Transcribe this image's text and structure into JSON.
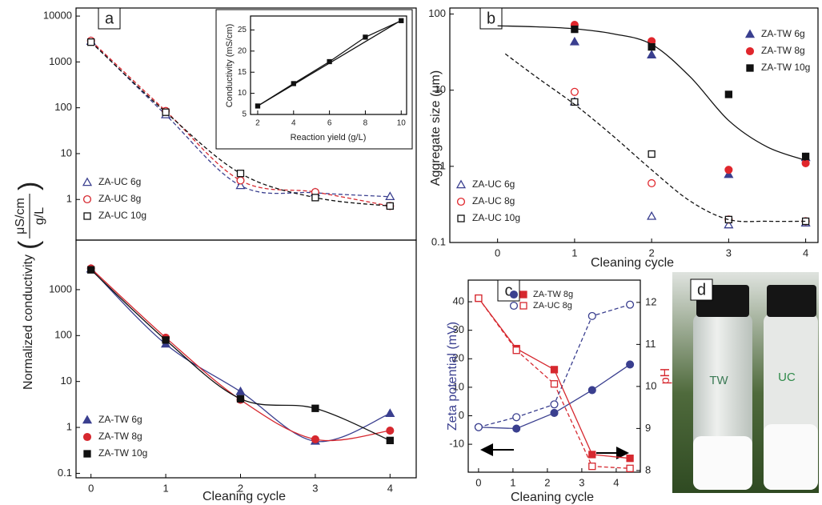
{
  "chart_data": [
    {
      "type": "line",
      "label": "a",
      "x": [
        0,
        1,
        2,
        3,
        4
      ],
      "xlim": [
        -0.2,
        4.35
      ],
      "ylim": [
        0.13,
        15000
      ],
      "log_y": true,
      "yticks": [
        1,
        10,
        100,
        1000,
        10000
      ],
      "ylabel": {
        "text": "Normalized conductivity",
        "numerator": "μS/cm",
        "denominator": "g/L"
      },
      "legend": "lower left",
      "series": [
        {
          "name": "ZA-UC 6g",
          "color": "#3a3f8f",
          "marker": "triangle",
          "filled": false,
          "dash": true,
          "smooth": true,
          "values": [
            2800,
            70,
            2,
            1.4,
            1.15
          ]
        },
        {
          "name": "ZA-UC 8g",
          "color": "#d6282f",
          "marker": "circle",
          "filled": false,
          "dash": true,
          "smooth": true,
          "values": [
            2900,
            85,
            2.6,
            1.45,
            0.72
          ]
        },
        {
          "name": "ZA-UC 10g",
          "color": "#111111",
          "marker": "square",
          "filled": false,
          "dash": true,
          "smooth": true,
          "values": [
            2700,
            80,
            3.7,
            1.1,
            0.72
          ]
        }
      ]
    },
    {
      "type": "line",
      "x": [
        0,
        1,
        2,
        3,
        4
      ],
      "xlim": [
        -0.2,
        4.35
      ],
      "ylim": [
        0.08,
        12000
      ],
      "log_y": true,
      "xticks": [
        0,
        1,
        2,
        3,
        4
      ],
      "yticks": [
        0.1,
        1,
        10,
        100,
        1000
      ],
      "xlabel": "Cleaning cycle",
      "legend": "lower left",
      "series": [
        {
          "name": "ZA-TW 6g",
          "color": "#3a3f8f",
          "marker": "triangle",
          "filled": true,
          "dash": false,
          "smooth": true,
          "values": [
            2800,
            65,
            6,
            0.5,
            2
          ]
        },
        {
          "name": "ZA-TW 8g",
          "color": "#d6282f",
          "marker": "circle",
          "filled": true,
          "dash": false,
          "smooth": true,
          "values": [
            2900,
            90,
            4,
            0.55,
            0.85
          ]
        },
        {
          "name": "ZA-TW 10g",
          "color": "#111111",
          "marker": "square",
          "filled": true,
          "dash": false,
          "smooth": true,
          "values": [
            2700,
            80,
            4.2,
            2.6,
            0.52
          ]
        }
      ]
    },
    {
      "type": "line",
      "x": [
        2,
        4,
        6,
        8,
        10
      ],
      "xlim": [
        1.6,
        10.3
      ],
      "ylim": [
        5,
        28.3
      ],
      "xticks": [
        2,
        4,
        6,
        8,
        10
      ],
      "yticks": [
        5,
        10,
        15,
        20,
        25
      ],
      "xlabel": "Reaction yield (g/L)",
      "ylabel": "Conductivity (mS/cm)",
      "series": [
        {
          "color": "#111111",
          "marker": "square",
          "filled": true,
          "dash": false,
          "smooth": false,
          "values": [
            7,
            12.3,
            17.5,
            23.3,
            27.2
          ]
        },
        {
          "color": "#111111",
          "marker": "none",
          "dash": false,
          "smooth": false,
          "x": [
            2,
            10
          ],
          "values": [
            7,
            27.3
          ]
        }
      ]
    },
    {
      "type": "line",
      "label": "b",
      "x": [
        1,
        2,
        3,
        4
      ],
      "xlim": [
        -0.62,
        4.16
      ],
      "ylim": [
        0.1,
        120
      ],
      "log_y": true,
      "xticks": [
        0,
        1,
        2,
        3,
        4
      ],
      "yticks": [
        0.1,
        1,
        10,
        100
      ],
      "xlabel": "Cleaning cycle",
      "ylabel": "Aggregate size (μm)",
      "series": [
        {
          "name": "ZA-TW 6g",
          "legend": "upper right",
          "color": "#3a3f8f",
          "marker": "triangle",
          "filled": true,
          "dash": null,
          "values": [
            43,
            29,
            0.78,
            1.3
          ]
        },
        {
          "name": "ZA-TW 8g",
          "legend": "upper right",
          "color": "#e0262c",
          "marker": "circle",
          "filled": true,
          "dash": null,
          "values": [
            72,
            44,
            0.9,
            1.1
          ]
        },
        {
          "name": "ZA-TW 10g",
          "legend": "upper right",
          "color": "#111111",
          "marker": "square",
          "filled": true,
          "dash": null,
          "values": [
            63,
            37,
            8.8,
            1.35
          ]
        },
        {
          "name": "ZA-UC 6g",
          "legend": "lower left",
          "color": "#3a3f8f",
          "marker": "triangle",
          "filled": false,
          "dash": null,
          "values": [
            7,
            0.22,
            0.17,
            0.18
          ]
        },
        {
          "name": "ZA-UC 8g",
          "legend": "lower left",
          "color": "#e0262c",
          "marker": "circle",
          "filled": false,
          "dash": null,
          "values": [
            9.5,
            0.6,
            0.2,
            0.19
          ]
        },
        {
          "name": "ZA-UC 10g",
          "legend": "lower left",
          "color": "#111111",
          "marker": "square",
          "filled": false,
          "dash": null,
          "values": [
            7,
            1.45,
            0.2,
            0.19
          ]
        },
        {
          "color": "#111111",
          "marker": "none",
          "dash": false,
          "smooth": true,
          "x": [
            0,
            0.5,
            1,
            1.5,
            2,
            2.5,
            3,
            3.5,
            4
          ],
          "values": [
            70,
            68,
            64,
            55,
            40,
            15,
            4,
            1.8,
            1.2
          ]
        },
        {
          "color": "#111111",
          "marker": "none",
          "dash": true,
          "smooth": true,
          "x": [
            0.1,
            0.5,
            1,
            1.5,
            2,
            2.5,
            3,
            3.5,
            4
          ],
          "values": [
            30,
            15,
            6.5,
            2.5,
            0.9,
            0.35,
            0.2,
            0.19,
            0.19
          ]
        }
      ]
    },
    {
      "type": "line",
      "label": "c",
      "x": [
        0,
        1.1,
        2.2,
        3.3,
        4.4
      ],
      "xlim": [
        -0.3,
        4.7
      ],
      "ylim": [
        -19.8,
        47.6
      ],
      "y2lim": [
        7.96,
        12.53
      ],
      "xticks": [
        0,
        1,
        2,
        3,
        4
      ],
      "yticks": [
        -10,
        0,
        10,
        20,
        30,
        40
      ],
      "y2ticks": [
        8,
        9,
        10,
        11,
        12
      ],
      "xlabel": "Cleaning cycle",
      "ylabel": "Zeta potential (mV)",
      "y2label": "pH",
      "ylabel_color": "#3a3f8f",
      "y2label_color": "#d6282f",
      "legend": "upper left",
      "series": [
        {
          "name": "ZA-TW 8g",
          "color": "#3a3f8f",
          "marker": "circle",
          "filled": true,
          "dash": false,
          "smooth": false,
          "values": [
            -4,
            -4.5,
            1,
            9,
            18
          ]
        },
        {
          "name": "ZA-UC 8g",
          "color": "#3a3f8f",
          "marker": "circle",
          "filled": false,
          "dash": true,
          "smooth": false,
          "values": [
            -4,
            -0.5,
            4,
            35,
            39
          ]
        },
        {
          "axis": "y2",
          "color": "#d6282f",
          "marker": "square",
          "filled": true,
          "dash": false,
          "smooth": false,
          "values": [
            12.1,
            10.9,
            10.4,
            8.38,
            8.29
          ]
        },
        {
          "axis": "y2",
          "color": "#d6282f",
          "marker": "square",
          "filled": false,
          "dash": true,
          "smooth": false,
          "values": [
            12.1,
            10.86,
            10.06,
            8.1,
            8.05
          ]
        }
      ]
    }
  ],
  "photo": {
    "label": "d",
    "vials": [
      "TW",
      "UC"
    ]
  }
}
